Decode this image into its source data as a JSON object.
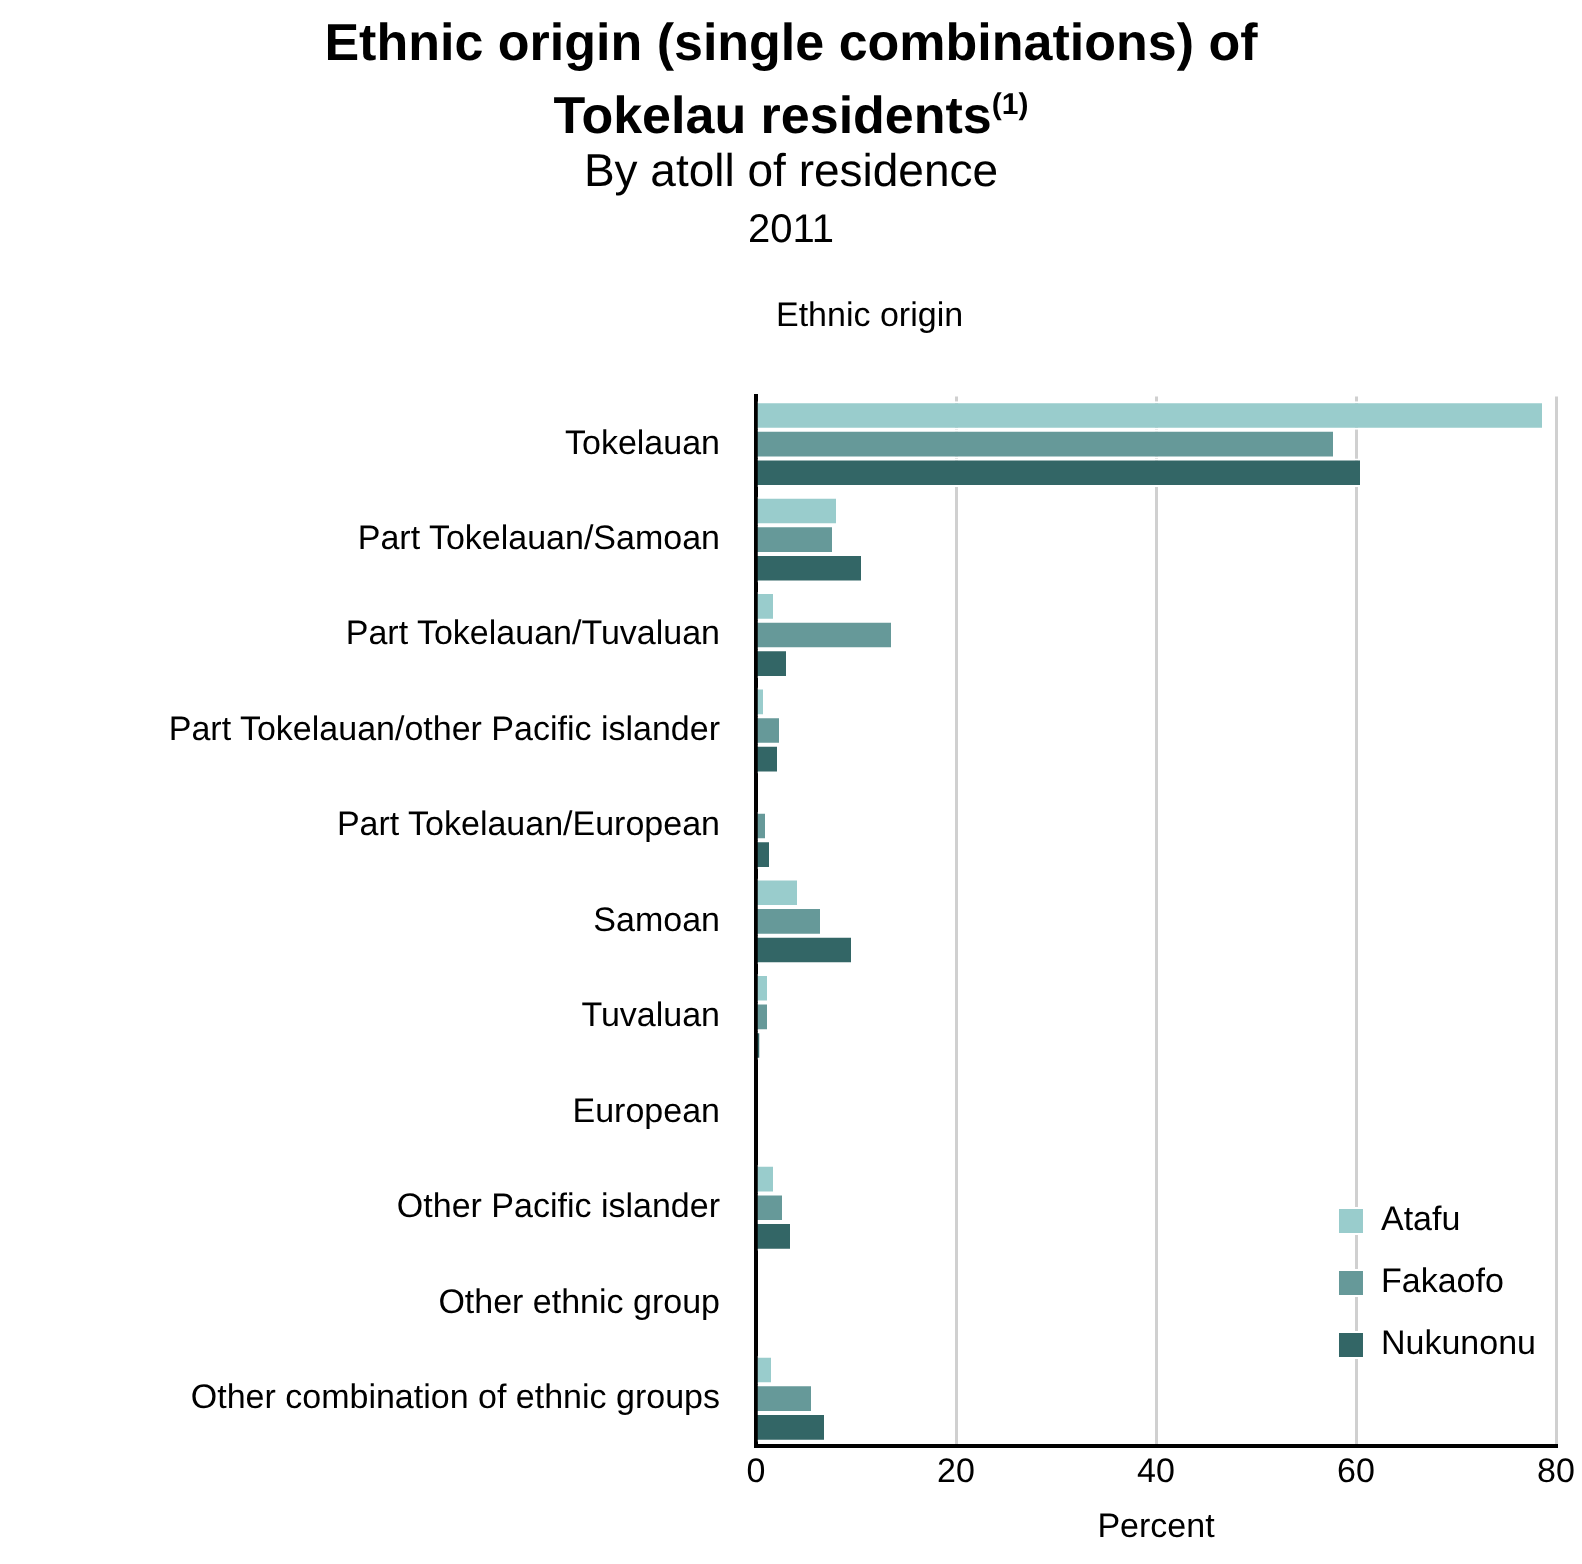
{
  "chart_data": {
    "type": "bar",
    "orientation": "horizontal",
    "title": "Ethnic origin (single combinations) of Tokelau residents$^{(1)}$",
    "subtitle": "By atoll of residence",
    "annotations": [
      "2011"
    ],
    "ylabel": "Ethnic origin",
    "xlabel": "Percent",
    "categories": [
      "Tokelauan",
      "Part Tokelauan/Samoan",
      "Part Tokelauan/Tuvaluan",
      "Part Tokelauan/other Pacific islander",
      "Part Tokelauan/European",
      "Samoan",
      "Tuvaluan",
      "European",
      "Other Pacific islander",
      "Other ethnic group",
      "Other combination of ethnic groups"
    ],
    "series": [
      {
        "name": "Atafu",
        "color": "#99cccc",
        "values": [
          78.8,
          8.2,
          1.9,
          0.9,
          0,
          4.3,
          1.3,
          0,
          1.9,
          0,
          1.7
        ]
      },
      {
        "name": "Fakaofo",
        "color": "#669999",
        "values": [
          57.9,
          7.8,
          13.7,
          2.5,
          1.1,
          6.6,
          1.3,
          0,
          2.8,
          0,
          5.7
        ]
      },
      {
        "name": "Nukunonu",
        "color": "#336666",
        "values": [
          60.6,
          10.7,
          3.2,
          2.3,
          1.5,
          9.7,
          0.5,
          0,
          3.6,
          0,
          7.0
        ]
      }
    ],
    "xlim": [
      0,
      80
    ],
    "xticks": [
      0,
      20,
      40,
      60,
      80
    ],
    "grid": "x",
    "legend": "bottom right"
  }
}
